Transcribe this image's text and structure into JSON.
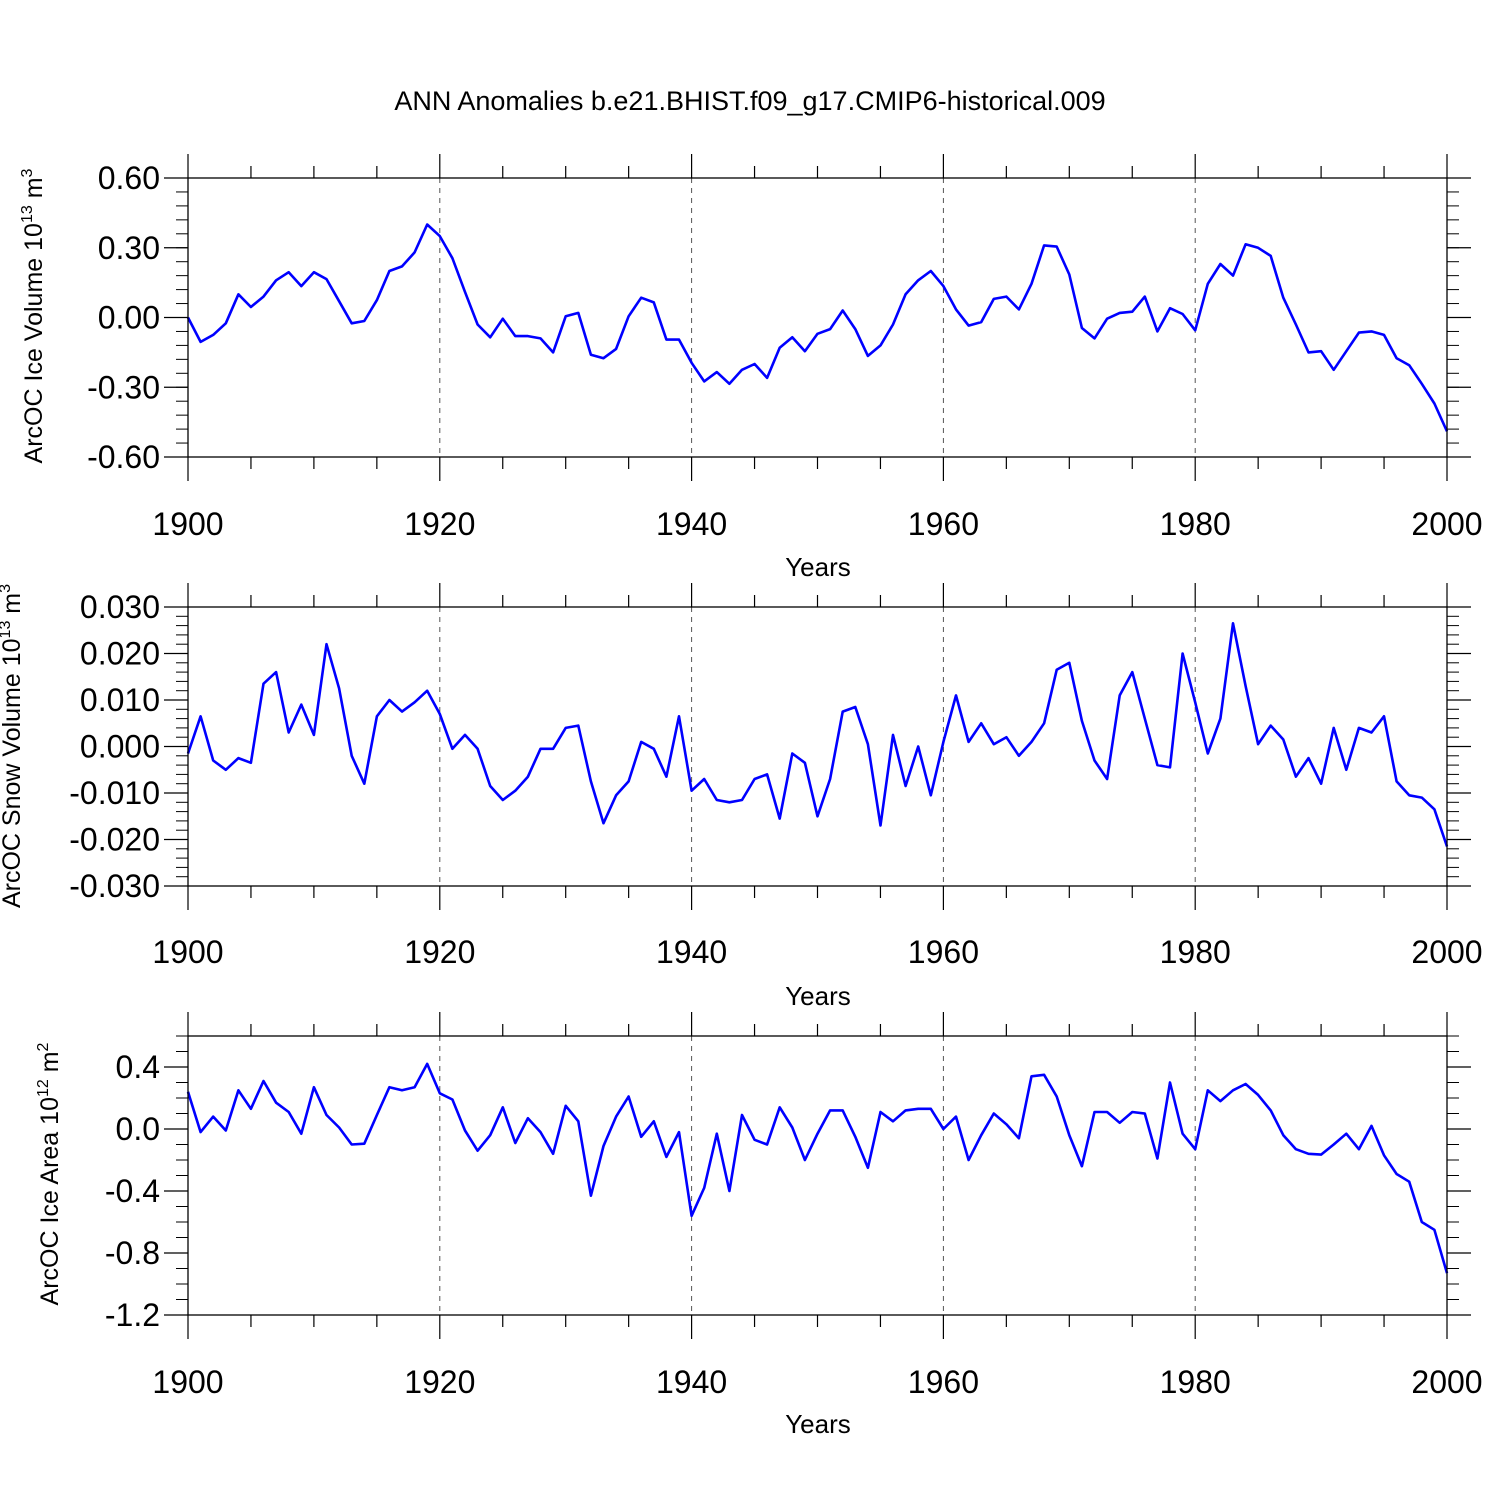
{
  "title": "ANN Anomalies b.e21.BHIST.f09_g17.CMIP6-historical.009",
  "line_color": "#0000ff",
  "chart_data": [
    {
      "type": "line",
      "title": "ANN Anomalies b.e21.BHIST.f09_g17.CMIP6-historical.009",
      "xlabel": "Years",
      "ylabel": {
        "text": "ArcOC Ice Volume 10",
        "exp": "13",
        "unit": " m",
        "unit_exp": "3"
      },
      "xlim": [
        1900,
        2000
      ],
      "ylim": [
        -0.6,
        0.6
      ],
      "xticks": [
        1900,
        1920,
        1940,
        1960,
        1980,
        2000
      ],
      "yticks": [
        -0.6,
        -0.3,
        0.0,
        0.3,
        0.6
      ],
      "ytick_labels": [
        "-0.60",
        "-0.30",
        "0.00",
        "0.30",
        "0.60"
      ],
      "ytick_minor_step": 0.06,
      "series": [
        {
          "name": "ArcOC Ice Volume",
          "x_start": 1900,
          "values": [
            0.0,
            -0.105,
            -0.075,
            -0.025,
            0.1,
            0.045,
            0.09,
            0.16,
            0.195,
            0.135,
            0.195,
            0.165,
            0.07,
            -0.025,
            -0.015,
            0.075,
            0.2,
            0.22,
            0.28,
            0.4,
            0.35,
            0.255,
            0.11,
            -0.03,
            -0.085,
            -0.005,
            -0.08,
            -0.08,
            -0.09,
            -0.15,
            0.005,
            0.02,
            -0.16,
            -0.175,
            -0.135,
            0.005,
            0.085,
            0.065,
            -0.095,
            -0.095,
            -0.195,
            -0.275,
            -0.235,
            -0.285,
            -0.225,
            -0.2,
            -0.26,
            -0.13,
            -0.085,
            -0.145,
            -0.07,
            -0.05,
            0.03,
            -0.05,
            -0.165,
            -0.12,
            -0.03,
            0.1,
            0.16,
            0.2,
            0.135,
            0.035,
            -0.035,
            -0.02,
            0.08,
            0.09,
            0.035,
            0.145,
            0.31,
            0.305,
            0.185,
            -0.045,
            -0.09,
            -0.005,
            0.02,
            0.025,
            0.09,
            -0.06,
            0.04,
            0.015,
            -0.055,
            0.145,
            0.23,
            0.18,
            0.315,
            0.3,
            0.265,
            0.085,
            -0.03,
            -0.15,
            -0.145,
            -0.225,
            -0.145,
            -0.065,
            -0.06,
            -0.075,
            -0.175,
            -0.205,
            -0.285,
            -0.37,
            -0.49
          ]
        }
      ]
    },
    {
      "type": "line",
      "xlabel": "Years",
      "ylabel": {
        "text": "ArcOC Snow Volume 10",
        "exp": "13",
        "unit": " m",
        "unit_exp": "3"
      },
      "xlim": [
        1900,
        2000
      ],
      "ylim": [
        -0.03,
        0.03
      ],
      "xticks": [
        1900,
        1920,
        1940,
        1960,
        1980,
        2000
      ],
      "yticks": [
        -0.03,
        -0.02,
        -0.01,
        0.0,
        0.01,
        0.02,
        0.03
      ],
      "ytick_labels": [
        "-0.030",
        "-0.020",
        "-0.010",
        "0.000",
        "0.010",
        "0.020",
        "0.030"
      ],
      "ytick_minor_step": 0.002,
      "series": [
        {
          "name": "ArcOC Snow Volume",
          "x_start": 1900,
          "values": [
            -0.0015,
            0.0065,
            -0.003,
            -0.005,
            -0.0025,
            -0.0035,
            0.0135,
            0.016,
            0.003,
            0.009,
            0.0025,
            0.022,
            0.0125,
            -0.002,
            -0.008,
            0.0065,
            0.01,
            0.0075,
            0.0095,
            0.012,
            0.007,
            -0.0005,
            0.0025,
            -0.0005,
            -0.0085,
            -0.0115,
            -0.0095,
            -0.0065,
            -0.0005,
            -0.0005,
            0.004,
            0.0045,
            -0.0075,
            -0.0165,
            -0.0105,
            -0.0075,
            0.001,
            -0.0005,
            -0.0065,
            0.0065,
            -0.0095,
            -0.007,
            -0.0115,
            -0.012,
            -0.0115,
            -0.007,
            -0.006,
            -0.0155,
            -0.0015,
            -0.0035,
            -0.015,
            -0.007,
            0.0075,
            0.0085,
            0.0005,
            -0.017,
            0.0025,
            -0.0085,
            0.0,
            -0.0105,
            0.001,
            0.011,
            0.001,
            0.005,
            0.0005,
            0.002,
            -0.002,
            0.001,
            0.005,
            0.0165,
            0.018,
            0.0055,
            -0.003,
            -0.007,
            0.011,
            0.016,
            0.006,
            -0.004,
            -0.0045,
            0.02,
            0.0095,
            -0.0015,
            0.006,
            0.0265,
            0.013,
            0.0005,
            0.0045,
            0.0015,
            -0.0065,
            -0.0025,
            -0.008,
            0.004,
            -0.005,
            0.004,
            0.003,
            0.0065,
            -0.0075,
            -0.0105,
            -0.011,
            -0.0135,
            -0.0215
          ]
        }
      ]
    },
    {
      "type": "line",
      "xlabel": "Years",
      "ylabel": {
        "text": "ArcOC Ice Area 10",
        "exp": "12",
        "unit": " m",
        "unit_exp": "2"
      },
      "xlim": [
        1900,
        2000
      ],
      "ylim": [
        -1.2,
        0.6
      ],
      "xticks": [
        1900,
        1920,
        1940,
        1960,
        1980,
        2000
      ],
      "yticks": [
        -1.2,
        -0.8,
        -0.4,
        0.0,
        0.4
      ],
      "ytick_labels": [
        "-1.2",
        "-0.8",
        "-0.4",
        "0.0",
        "0.4"
      ],
      "ytick_minor_step": 0.1,
      "series": [
        {
          "name": "ArcOC Ice Area",
          "x_start": 1900,
          "values": [
            0.24,
            -0.02,
            0.08,
            -0.01,
            0.25,
            0.13,
            0.31,
            0.17,
            0.11,
            -0.03,
            0.27,
            0.09,
            0.01,
            -0.1,
            -0.095,
            0.09,
            0.27,
            0.25,
            0.27,
            0.42,
            0.23,
            0.19,
            -0.01,
            -0.14,
            -0.04,
            0.14,
            -0.09,
            0.07,
            -0.02,
            -0.16,
            0.15,
            0.05,
            -0.43,
            -0.11,
            0.08,
            0.21,
            -0.05,
            0.05,
            -0.18,
            -0.02,
            -0.56,
            -0.38,
            -0.03,
            -0.4,
            0.09,
            -0.07,
            -0.1,
            0.14,
            0.01,
            -0.2,
            -0.03,
            0.12,
            0.12,
            -0.05,
            -0.25,
            0.11,
            0.05,
            0.12,
            0.13,
            0.13,
            0.0,
            0.08,
            -0.2,
            -0.04,
            0.1,
            0.03,
            -0.06,
            0.34,
            0.35,
            0.21,
            -0.04,
            -0.24,
            0.11,
            0.11,
            0.04,
            0.11,
            0.1,
            -0.19,
            0.3,
            -0.03,
            -0.13,
            0.25,
            0.18,
            0.25,
            0.29,
            0.22,
            0.12,
            -0.04,
            -0.13,
            -0.16,
            -0.165,
            -0.1,
            -0.03,
            -0.13,
            0.02,
            -0.17,
            -0.29,
            -0.34,
            -0.6,
            -0.65,
            -0.93
          ]
        }
      ]
    }
  ]
}
